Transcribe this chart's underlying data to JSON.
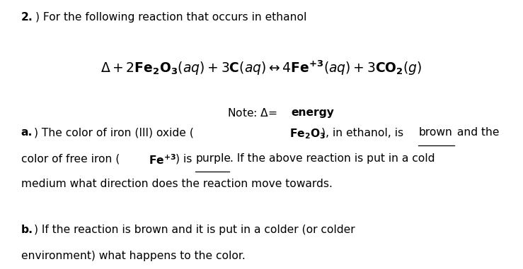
{
  "bg_color": "#ffffff",
  "text_color": "#000000",
  "figsize": [
    7.39,
    3.81
  ],
  "dpi": 100,
  "fs": 11.2,
  "fs_eq": 13.5,
  "heading": "2.",
  "heading_rest": ") For the following reaction that occurs in ethanol",
  "equation": "$\\Delta + 2\\mathbf{Fe_2O_3}(aq) + 3\\mathbf{C}(aq) \\leftrightarrow 4\\mathbf{Fe^{+3}}(aq) + 3\\mathbf{CO_2}(g)$",
  "note_prefix": "Note: $\\Delta$=",
  "note_bold": "energy",
  "a_bold": "a.",
  "a_part1": ") The color of iron (III) oxide (",
  "a_fe2o3": "$\\mathbf{Fe_2O_3}$",
  "a_part2": "), in ethanol, is ",
  "a_brown": "brown",
  "a_part3": " and the",
  "a2_part1": "color of free iron (",
  "a2_fe3": "$\\mathbf{Fe^{+3}}$",
  "a2_part2": ") is ",
  "a2_purple": "purple",
  "a2_part3": ". If the above reaction is put in a cold",
  "a3": "medium what direction does the reaction move towards.",
  "b_bold": "b.",
  "b_part1": ") If the reaction is brown and it is put in a colder (or colder",
  "b_part2": "environment) what happens to the color."
}
